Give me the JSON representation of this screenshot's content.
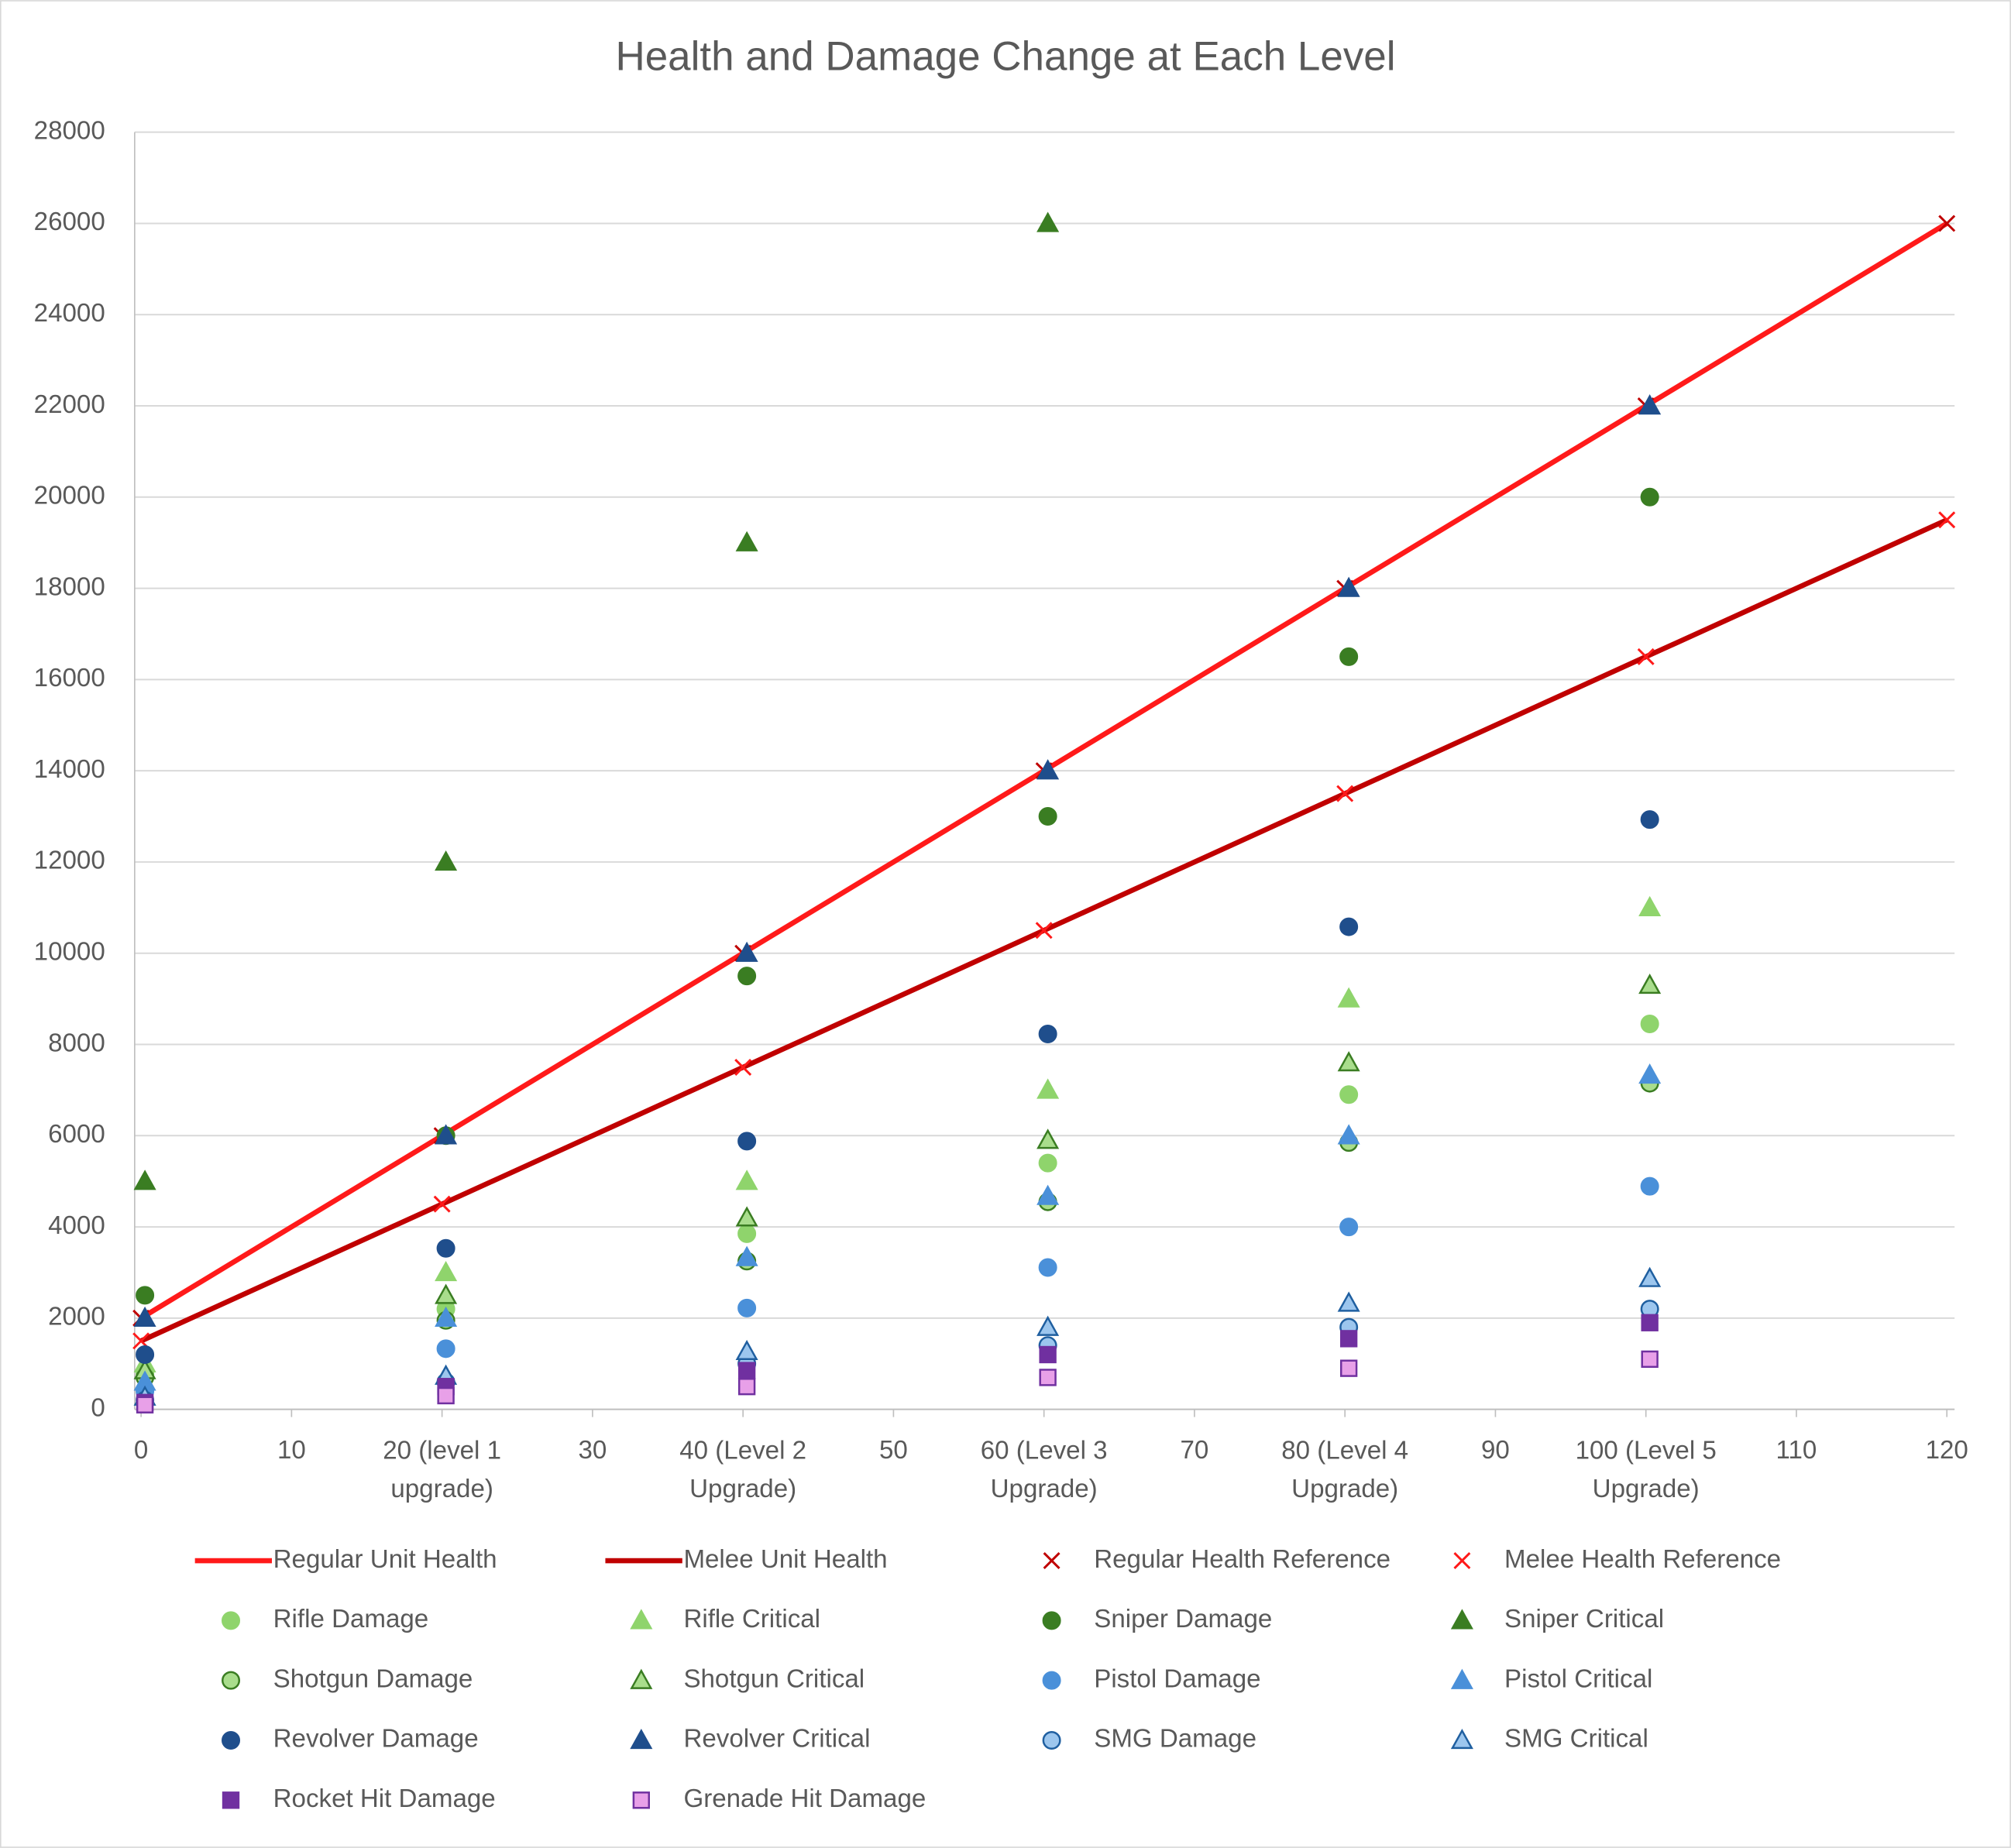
{
  "chart_data": {
    "type": "scatter",
    "title": "Health and Damage Change at Each Level",
    "xlim": [
      0,
      120
    ],
    "ylim": [
      0,
      28000
    ],
    "xticks": [
      0,
      10,
      {
        "value": 20,
        "label": "20 (level 1 upgrade)"
      },
      30,
      {
        "value": 40,
        "label": "40 (Level 2 Upgrade)"
      },
      50,
      {
        "value": 60,
        "label": "60 (Level 3 Upgrade)"
      },
      70,
      {
        "value": 80,
        "label": "80 (Level 4 Upgrade)"
      },
      90,
      {
        "value": 100,
        "label": "100 (Level 5 Upgrade)"
      },
      110,
      120
    ],
    "yticks": [
      0,
      2000,
      4000,
      6000,
      8000,
      10000,
      12000,
      14000,
      16000,
      18000,
      20000,
      22000,
      24000,
      26000,
      28000
    ],
    "grid": true,
    "legend": "bottom",
    "series": [
      {
        "name": "Regular Unit Health",
        "marker": "line",
        "color": "#ff1a1a",
        "x": [
          0,
          20,
          40,
          60,
          80,
          100,
          120
        ],
        "values": [
          2000,
          6000,
          10000,
          14000,
          18000,
          22000,
          26000
        ]
      },
      {
        "name": "Melee Unit Health",
        "marker": "line",
        "color": "#c00000",
        "x": [
          0,
          20,
          40,
          60,
          80,
          100,
          120
        ],
        "values": [
          1500,
          4500,
          7500,
          10500,
          13500,
          16500,
          19500
        ]
      },
      {
        "name": "Regular Health Reference",
        "marker": "x",
        "color": "#c00000",
        "x": [
          0,
          20,
          40,
          60,
          80,
          100,
          120
        ],
        "values": [
          2000,
          6000,
          10000,
          14000,
          18000,
          22000,
          26000
        ]
      },
      {
        "name": "Melee Health Reference",
        "marker": "x",
        "color": "#ff1a1a",
        "x": [
          0,
          20,
          40,
          60,
          80,
          100,
          120
        ],
        "values": [
          1500,
          4500,
          7500,
          10500,
          13500,
          16500,
          19500
        ]
      },
      {
        "name": "Rifle Damage",
        "marker": "circle",
        "color": "#8fd46c",
        "fill": "#8fd46c",
        "x": [
          0,
          20,
          40,
          60,
          80,
          100
        ],
        "values": [
          800,
          2200,
          3850,
          5400,
          6900,
          8450
        ]
      },
      {
        "name": "Rifle Critical",
        "marker": "triangle",
        "color": "#8fd46c",
        "fill": "#8fd46c",
        "x": [
          0,
          20,
          40,
          60,
          80,
          100
        ],
        "values": [
          1000,
          3000,
          5000,
          7000,
          9000,
          11000
        ]
      },
      {
        "name": "Sniper Damage",
        "marker": "circle",
        "color": "#3a7d22",
        "fill": "#3a7d22",
        "x": [
          0,
          20,
          40,
          60,
          80,
          100
        ],
        "values": [
          2500,
          6000,
          9500,
          13000,
          16500,
          20000
        ]
      },
      {
        "name": "Sniper Critical",
        "marker": "triangle",
        "color": "#3a7d22",
        "fill": "#3a7d22",
        "x": [
          0,
          20,
          40,
          60,
          80,
          100
        ],
        "values": [
          5000,
          12000,
          19000,
          26000,
          null,
          null
        ]
      },
      {
        "name": "Shotgun Damage",
        "marker": "circle",
        "color": "#3a7d22",
        "fill": "#a9dd8c",
        "x": [
          0,
          20,
          40,
          60,
          80,
          100
        ],
        "values": [
          700,
          1950,
          3250,
          4550,
          5850,
          7150
        ]
      },
      {
        "name": "Shotgun Critical",
        "marker": "triangle",
        "color": "#3a7d22",
        "fill": "#a9dd8c",
        "x": [
          0,
          20,
          40,
          60,
          80,
          100
        ],
        "values": [
          850,
          2500,
          4200,
          5900,
          7600,
          9300
        ]
      },
      {
        "name": "Pistol Damage",
        "marker": "circle",
        "color": "#4a90d9",
        "fill": "#4a90d9",
        "x": [
          0,
          20,
          40,
          60,
          80,
          100
        ],
        "values": [
          400,
          1330,
          2220,
          3110,
          4000,
          4890
        ]
      },
      {
        "name": "Pistol Critical",
        "marker": "triangle",
        "color": "#4a90d9",
        "fill": "#4a90d9",
        "x": [
          0,
          20,
          40,
          60,
          80,
          100
        ],
        "values": [
          600,
          2000,
          3330,
          4670,
          6000,
          7330
        ]
      },
      {
        "name": "Revolver Damage",
        "marker": "circle",
        "color": "#1f4e8c",
        "fill": "#1f4e8c",
        "x": [
          0,
          20,
          40,
          60,
          80,
          100
        ],
        "values": [
          1200,
          3530,
          5880,
          8230,
          10580,
          12930
        ]
      },
      {
        "name": "Revolver Critical",
        "marker": "triangle",
        "color": "#1f4e8c",
        "fill": "#1f4e8c",
        "x": [
          0,
          20,
          40,
          60,
          80,
          100
        ],
        "values": [
          2000,
          6000,
          10000,
          14000,
          18000,
          22000
        ]
      },
      {
        "name": "SMG Damage",
        "marker": "circle",
        "color": "#1f5fa0",
        "fill": "#9cc6ee",
        "x": [
          0,
          20,
          40,
          60,
          80,
          100
        ],
        "values": [
          200,
          600,
          1000,
          1400,
          1800,
          2200
        ]
      },
      {
        "name": "SMG Critical",
        "marker": "triangle",
        "color": "#1f5fa0",
        "fill": "#9cc6ee",
        "x": [
          0,
          20,
          40,
          60,
          80,
          100
        ],
        "values": [
          270,
          730,
          1270,
          1800,
          2330,
          2870
        ]
      },
      {
        "name": "Rocket Hit Damage",
        "marker": "square",
        "color": "#7030a0",
        "fill": "#7030a0",
        "x": [
          0,
          20,
          40,
          60,
          80,
          100
        ],
        "values": [
          150,
          500,
          850,
          1200,
          1550,
          1900
        ]
      },
      {
        "name": "Grenade Hit Damage",
        "marker": "square",
        "color": "#7030a0",
        "fill": "#e8a0e8",
        "x": [
          0,
          20,
          40,
          60,
          80,
          100
        ],
        "values": [
          100,
          300,
          500,
          700,
          900,
          1100
        ]
      }
    ]
  }
}
